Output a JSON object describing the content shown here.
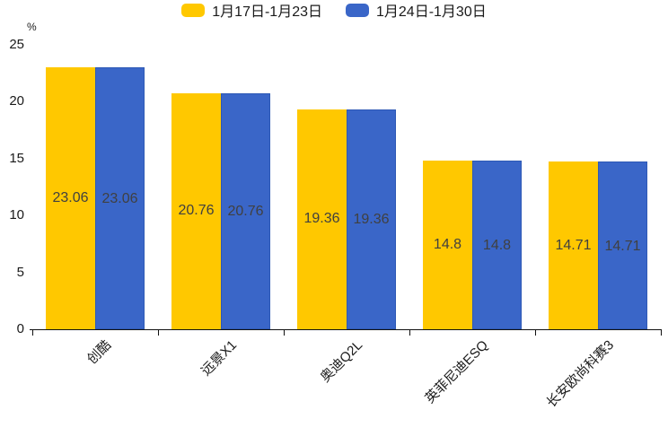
{
  "chart_data": {
    "type": "bar",
    "title": "",
    "unit": "%",
    "categories": [
      "创酷",
      "远景X1",
      "奥迪Q2L",
      "英菲尼迪ESQ",
      "长安欧尚科赛3"
    ],
    "series": [
      {
        "name": "1月17日-1月23日",
        "color": "#FFC800",
        "values": [
          23.06,
          20.76,
          19.36,
          14.8,
          14.71
        ]
      },
      {
        "name": "1月24日-1月30日",
        "color": "#3A66C8",
        "values": [
          23.06,
          20.76,
          19.36,
          14.8,
          14.71
        ]
      }
    ],
    "y_ticks": [
      0,
      5,
      10,
      15,
      20,
      25
    ],
    "ylim": [
      0,
      25
    ],
    "grid": false,
    "legend_position": "top",
    "value_label_position": "inside-center",
    "value_label_color": "#404040",
    "axis_color": "#111111",
    "background_color": "#ffffff"
  }
}
